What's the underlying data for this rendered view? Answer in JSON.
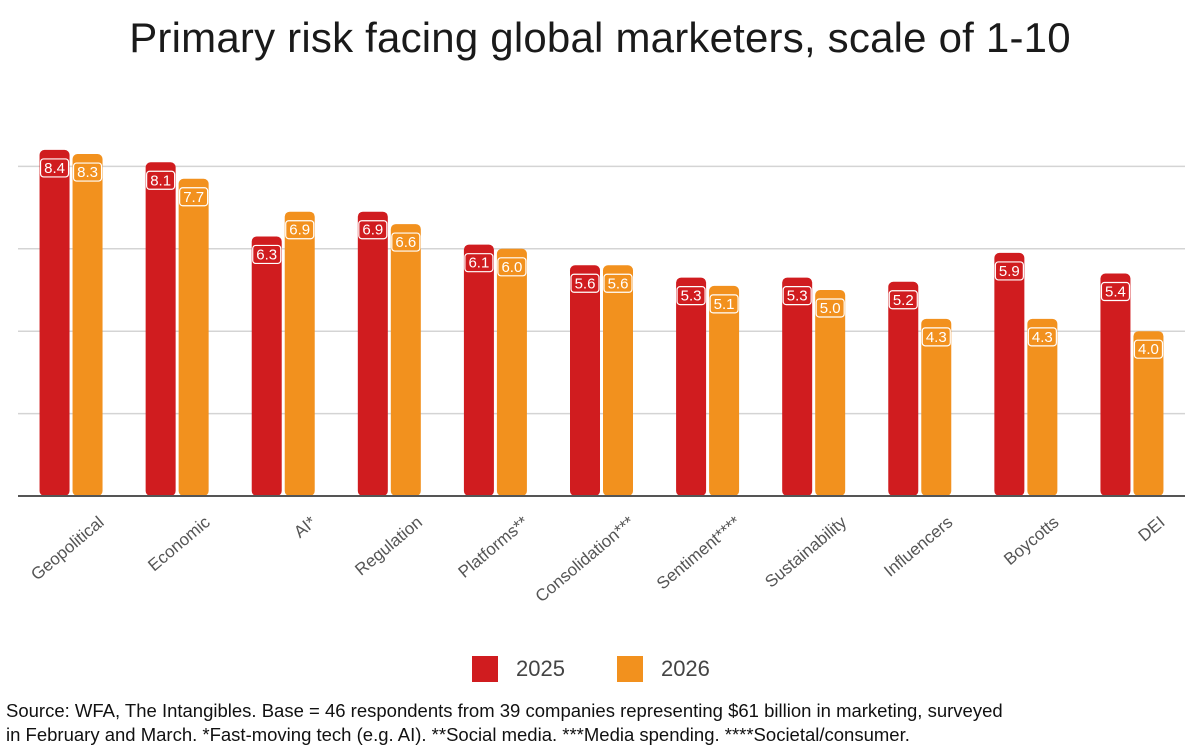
{
  "chart_data": {
    "type": "bar",
    "title": "Primary risk facing global marketers, scale of 1-10",
    "xlabel": "",
    "ylabel": "",
    "ylim": [
      0,
      10
    ],
    "yticks": [
      2,
      4,
      6,
      8
    ],
    "grid": true,
    "legend_position": "bottom-center",
    "categories": [
      "Geopolitical",
      "Economic",
      "AI*",
      "Regulation",
      "Platforms**",
      "Consolidation***",
      "Sentiment****",
      "Sustainability",
      "Influencers",
      "Boycotts",
      "DEI"
    ],
    "series": [
      {
        "name": "2025",
        "color": "#d01c1f",
        "values": [
          8.4,
          8.1,
          6.3,
          6.9,
          6.1,
          5.6,
          5.3,
          5.3,
          5.2,
          5.9,
          5.4
        ]
      },
      {
        "name": "2026",
        "color": "#f2911e",
        "values": [
          8.3,
          7.7,
          6.9,
          6.6,
          6.0,
          5.6,
          5.1,
          5.0,
          4.3,
          4.3,
          4.0
        ]
      }
    ]
  },
  "source": {
    "line1": "Source: WFA, The Intangibles. Base = 46 respondents from 39 companies representing $61 billion in marketing, surveyed",
    "line2": "in February and March. *Fast-moving tech (e.g. AI). **Social media. ***Media spending. ****Societal/consumer."
  }
}
